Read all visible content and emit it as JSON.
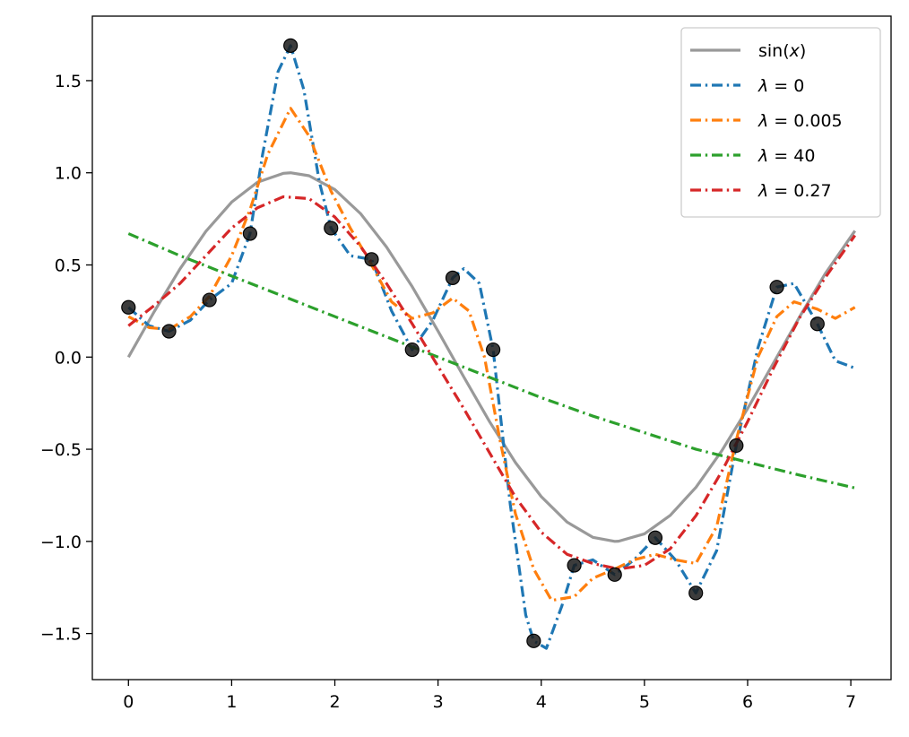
{
  "chart_data": {
    "type": "line",
    "title": "",
    "xlabel": "",
    "ylabel": "",
    "xlim": [
      -0.35,
      7.39
    ],
    "ylim": [
      -1.75,
      1.85
    ],
    "xticks": [
      0,
      1,
      2,
      3,
      4,
      5,
      6,
      7
    ],
    "xtick_labels": [
      "0",
      "1",
      "2",
      "3",
      "4",
      "5",
      "6",
      "7"
    ],
    "yticks": [
      -1.5,
      -1.0,
      -0.5,
      0.0,
      0.5,
      1.0,
      1.5
    ],
    "ytick_labels": [
      "−1.5",
      "−1.0",
      "−0.5",
      "0.0",
      "0.5",
      "1.0",
      "1.5"
    ],
    "grid": false,
    "legend_position": "top-right",
    "scatter": {
      "color": "#1a1a1a",
      "x": [
        0.0,
        0.393,
        0.785,
        1.178,
        1.571,
        1.963,
        2.356,
        2.749,
        3.142,
        3.534,
        3.927,
        4.32,
        4.712,
        5.105,
        5.498,
        5.89,
        6.283,
        6.676
      ],
      "y": [
        0.27,
        0.14,
        0.31,
        0.67,
        1.69,
        0.7,
        0.53,
        0.04,
        0.43,
        0.04,
        -1.54,
        -1.13,
        -1.18,
        -0.98,
        -1.28,
        -0.48,
        0.38,
        0.18
      ]
    },
    "series": [
      {
        "name": "sin(x)",
        "legend_main": "sin(",
        "legend_var": "x",
        "legend_close": ")",
        "color": "#999999",
        "style": "solid",
        "x": [
          0.0,
          0.25,
          0.5,
          0.75,
          1.0,
          1.25,
          1.5,
          1.571,
          1.75,
          2.0,
          2.25,
          2.5,
          2.75,
          3.0,
          3.25,
          3.5,
          3.75,
          4.0,
          4.25,
          4.5,
          4.712,
          4.75,
          5.0,
          5.25,
          5.5,
          5.75,
          6.0,
          6.25,
          6.5,
          6.75,
          7.04
        ],
        "y": [
          0.0,
          0.247,
          0.479,
          0.682,
          0.841,
          0.949,
          0.997,
          1.0,
          0.984,
          0.909,
          0.778,
          0.598,
          0.382,
          0.141,
          -0.108,
          -0.351,
          -0.572,
          -0.757,
          -0.895,
          -0.978,
          -1.0,
          -0.999,
          -0.959,
          -0.859,
          -0.706,
          -0.508,
          -0.279,
          -0.033,
          0.215,
          0.451,
          0.685
        ]
      },
      {
        "name": "λ = 0",
        "legend_main": "λ",
        "legend_value": " = 0",
        "color": "#1f77b4",
        "style": "dashdot",
        "x": [
          0.0,
          0.2,
          0.393,
          0.6,
          0.785,
          1.0,
          1.178,
          1.3,
          1.45,
          1.571,
          1.7,
          1.85,
          1.963,
          2.15,
          2.356,
          2.55,
          2.749,
          2.95,
          3.142,
          3.25,
          3.4,
          3.534,
          3.7,
          3.85,
          3.927,
          4.05,
          4.2,
          4.32,
          4.5,
          4.712,
          4.9,
          5.105,
          5.3,
          5.498,
          5.7,
          5.89,
          6.1,
          6.283,
          6.45,
          6.676,
          6.85,
          7.04
        ],
        "y": [
          0.27,
          0.17,
          0.14,
          0.2,
          0.31,
          0.4,
          0.67,
          1.1,
          1.55,
          1.69,
          1.45,
          0.95,
          0.7,
          0.55,
          0.53,
          0.25,
          0.04,
          0.2,
          0.43,
          0.48,
          0.4,
          0.04,
          -0.8,
          -1.4,
          -1.54,
          -1.58,
          -1.35,
          -1.13,
          -1.1,
          -1.18,
          -1.1,
          -0.98,
          -1.1,
          -1.28,
          -1.05,
          -0.48,
          0.05,
          0.38,
          0.4,
          0.18,
          -0.02,
          -0.06
        ]
      },
      {
        "name": "λ = 0.005",
        "legend_main": "λ",
        "legend_value": " = 0.005",
        "color": "#ff7f0e",
        "style": "dashdot",
        "x": [
          0.0,
          0.2,
          0.393,
          0.6,
          0.785,
          1.0,
          1.178,
          1.35,
          1.571,
          1.75,
          1.963,
          2.15,
          2.356,
          2.55,
          2.749,
          2.95,
          3.142,
          3.3,
          3.45,
          3.6,
          3.75,
          3.927,
          4.1,
          4.32,
          4.5,
          4.712,
          4.9,
          5.105,
          5.3,
          5.498,
          5.7,
          5.89,
          6.1,
          6.283,
          6.45,
          6.676,
          6.85,
          7.04
        ],
        "y": [
          0.22,
          0.16,
          0.15,
          0.22,
          0.33,
          0.55,
          0.8,
          1.1,
          1.35,
          1.2,
          0.9,
          0.7,
          0.5,
          0.3,
          0.21,
          0.24,
          0.32,
          0.25,
          0.0,
          -0.45,
          -0.85,
          -1.15,
          -1.32,
          -1.3,
          -1.2,
          -1.15,
          -1.1,
          -1.07,
          -1.1,
          -1.12,
          -0.92,
          -0.45,
          0.0,
          0.22,
          0.3,
          0.26,
          0.21,
          0.27
        ]
      },
      {
        "name": "λ = 40",
        "legend_main": "λ",
        "legend_value": " = 40",
        "color": "#2ca02c",
        "style": "dashdot",
        "x": [
          0.0,
          0.5,
          1.0,
          1.5,
          2.0,
          2.5,
          3.0,
          3.5,
          4.0,
          4.5,
          5.0,
          5.5,
          6.0,
          6.5,
          7.04
        ],
        "y": [
          0.67,
          0.55,
          0.44,
          0.33,
          0.22,
          0.11,
          0.0,
          -0.11,
          -0.22,
          -0.32,
          -0.41,
          -0.5,
          -0.57,
          -0.64,
          -0.71
        ]
      },
      {
        "name": "λ = 0.27",
        "legend_main": "λ",
        "legend_value": " = 0.27",
        "color": "#d62728",
        "style": "dashdot",
        "x": [
          0.0,
          0.25,
          0.5,
          0.75,
          1.0,
          1.25,
          1.5,
          1.75,
          2.0,
          2.25,
          2.5,
          2.75,
          3.0,
          3.25,
          3.5,
          3.75,
          4.0,
          4.25,
          4.5,
          4.75,
          5.0,
          5.25,
          5.5,
          5.75,
          6.0,
          6.25,
          6.5,
          6.75,
          7.04
        ],
        "y": [
          0.17,
          0.28,
          0.4,
          0.55,
          0.7,
          0.81,
          0.87,
          0.86,
          0.76,
          0.6,
          0.4,
          0.18,
          -0.05,
          -0.28,
          -0.52,
          -0.76,
          -0.95,
          -1.07,
          -1.12,
          -1.15,
          -1.13,
          -1.04,
          -0.86,
          -0.62,
          -0.35,
          -0.06,
          0.21,
          0.43,
          0.66
        ]
      }
    ]
  }
}
